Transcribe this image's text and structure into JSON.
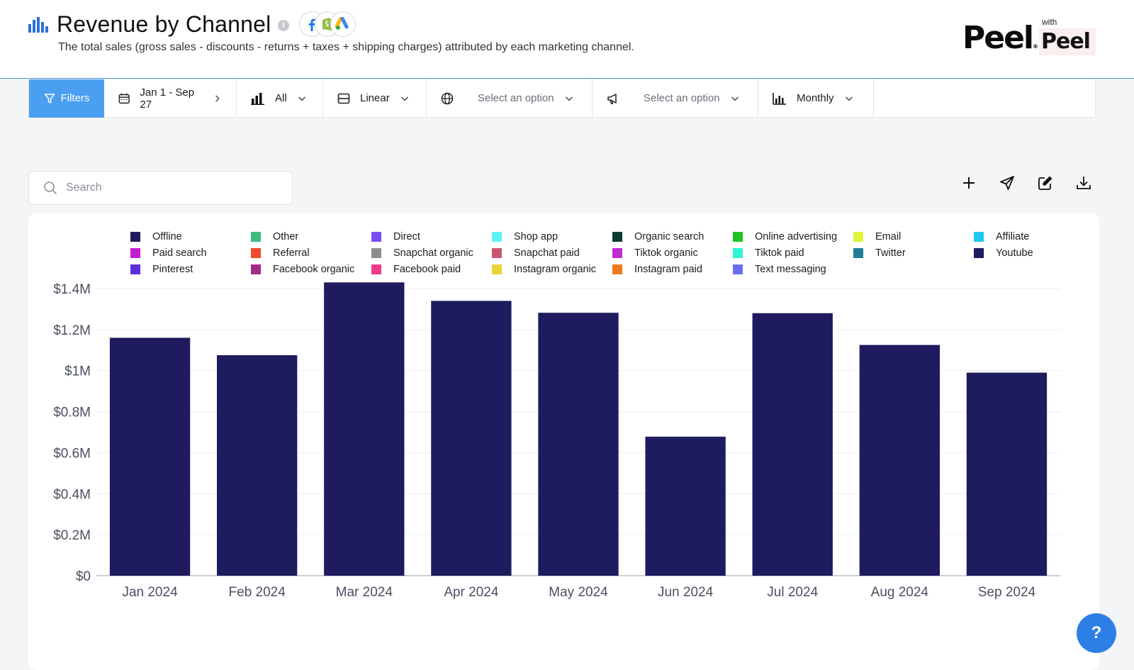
{
  "header": {
    "title": "Revenue by Channel",
    "subtitle": "The total sales (gross sales - discounts - returns + taxes + shipping charges) attributed by each marketing channel.",
    "info_icon": "info-icon",
    "sources": [
      "facebook-icon",
      "shopify-icon",
      "google-ads-icon"
    ],
    "brand_logo": "Peel",
    "with_label": "with",
    "with_logo": "Peel"
  },
  "toolbar": {
    "filters_label": "Filters",
    "date_range": "Jan 1 - Sep 27",
    "metric_value": "All",
    "scale_value": "Linear",
    "region_placeholder": "Select an option",
    "channel_placeholder": "Select an option",
    "granularity_value": "Monthly"
  },
  "search": {
    "placeholder": "Search"
  },
  "actions": [
    "add-icon",
    "send-icon",
    "edit-icon",
    "download-icon"
  ],
  "colors": {
    "bar": "#1e1b5e",
    "filters": "#4a9ff0",
    "help": "#2d7fe6"
  },
  "chart_data": {
    "type": "bar",
    "title": "",
    "xlabel": "",
    "ylabel": "",
    "categories": [
      "Jan 2024",
      "Feb 2024",
      "Mar 2024",
      "Apr 2024",
      "May 2024",
      "Jun 2024",
      "Jul 2024",
      "Aug 2024",
      "Sep 2024"
    ],
    "series": [
      {
        "name": "Youtube",
        "color": "#1e1b5e",
        "values": [
          1160000,
          1075000,
          1430000,
          1340000,
          1282000,
          678000,
          1280000,
          1125000,
          990000
        ]
      }
    ],
    "ylim": [
      0,
      1400000
    ],
    "yticks": [
      0,
      200000,
      400000,
      600000,
      800000,
      1000000,
      1200000,
      1400000
    ],
    "ytick_labels": [
      "$0",
      "$0.2M",
      "$0.4M",
      "$0.6M",
      "$0.8M",
      "$1M",
      "$1.2M",
      "$1.4M"
    ],
    "grid": true,
    "legend_position": "top",
    "legend": [
      {
        "label": "Offline",
        "color": "#1e1b5e"
      },
      {
        "label": "Other",
        "color": "#3dbd7d"
      },
      {
        "label": "Direct",
        "color": "#7b4df0"
      },
      {
        "label": "Shop app",
        "color": "#5ff3f3"
      },
      {
        "label": "Organic search",
        "color": "#0e3b36"
      },
      {
        "label": "Online advertising",
        "color": "#1fc21f"
      },
      {
        "label": "Email",
        "color": "#dff23c"
      },
      {
        "label": "Affiliate",
        "color": "#1ec8f0"
      },
      {
        "label": "Paid search",
        "color": "#c21fd1"
      },
      {
        "label": "Referral",
        "color": "#f04a2a"
      },
      {
        "label": "Snapchat organic",
        "color": "#8c8c8c"
      },
      {
        "label": "Snapchat paid",
        "color": "#c9576e"
      },
      {
        "label": "Tiktok organic",
        "color": "#c22bcf"
      },
      {
        "label": "Tiktok paid",
        "color": "#2ef5d4"
      },
      {
        "label": "Twitter",
        "color": "#1f7f99"
      },
      {
        "label": "Youtube",
        "color": "#1e1b5e"
      },
      {
        "label": "Pinterest",
        "color": "#5a2fe0"
      },
      {
        "label": "Facebook organic",
        "color": "#a02d8a"
      },
      {
        "label": "Facebook paid",
        "color": "#f03a8a"
      },
      {
        "label": "Instagram organic",
        "color": "#ecd23a"
      },
      {
        "label": "Instagram paid",
        "color": "#f07a1a"
      },
      {
        "label": "Text messaging",
        "color": "#6a6ff0"
      }
    ]
  },
  "help": {
    "label": "?"
  }
}
